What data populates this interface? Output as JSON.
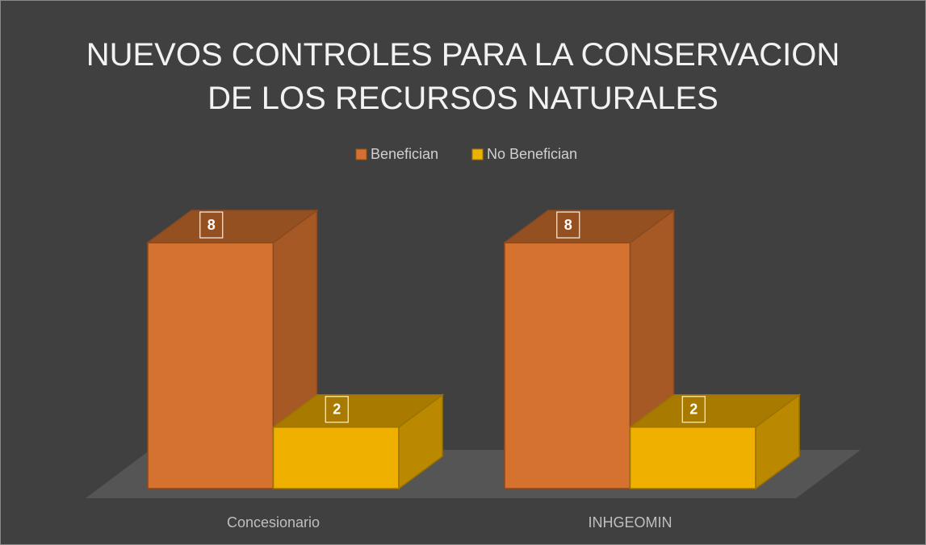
{
  "chart_data": {
    "type": "bar3d",
    "title": "NUEVOS CONTROLES PARA LA CONSERVACION DE LOS RECURSOS NATURALES",
    "categories": [
      "Concesionario",
      "INHGEOMIN"
    ],
    "series": [
      {
        "name": "Benefician",
        "color": "#d5722f",
        "values": [
          8,
          8
        ]
      },
      {
        "name": "No Benefician",
        "color": "#f0b000",
        "values": [
          2,
          2
        ]
      }
    ],
    "legend": "top"
  }
}
